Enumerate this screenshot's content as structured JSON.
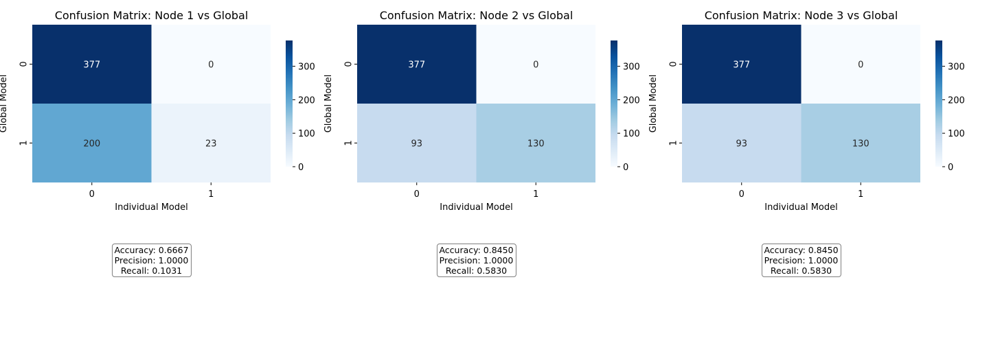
{
  "chart_data": [
    {
      "type": "heatmap",
      "title": "Confusion Matrix: Node 1 vs Global",
      "xlabel": "Individual Model",
      "ylabel": "Global Model",
      "x_categories": [
        "0",
        "1"
      ],
      "y_categories": [
        "0",
        "1"
      ],
      "matrix": [
        [
          377,
          0
        ],
        [
          200,
          23
        ]
      ],
      "colormap": "Blues",
      "colorbar": {
        "ticks": [
          0,
          100,
          200,
          300
        ],
        "range": [
          0,
          377
        ]
      },
      "metrics": [
        "Accuracy: 0.6667",
        "Precision: 1.0000",
        "Recall: 0.1031"
      ]
    },
    {
      "type": "heatmap",
      "title": "Confusion Matrix: Node 2 vs Global",
      "xlabel": "Individual Model",
      "ylabel": "Global Model",
      "x_categories": [
        "0",
        "1"
      ],
      "y_categories": [
        "0",
        "1"
      ],
      "matrix": [
        [
          377,
          0
        ],
        [
          93,
          130
        ]
      ],
      "colormap": "Blues",
      "colorbar": {
        "ticks": [
          0,
          100,
          200,
          300
        ],
        "range": [
          0,
          377
        ]
      },
      "metrics": [
        "Accuracy: 0.8450",
        "Precision: 1.0000",
        "Recall: 0.5830"
      ]
    },
    {
      "type": "heatmap",
      "title": "Confusion Matrix: Node 3 vs Global",
      "xlabel": "Individual Model",
      "ylabel": "Global Model",
      "x_categories": [
        "0",
        "1"
      ],
      "y_categories": [
        "0",
        "1"
      ],
      "matrix": [
        [
          377,
          0
        ],
        [
          93,
          130
        ]
      ],
      "colormap": "Blues",
      "colorbar": {
        "ticks": [
          0,
          100,
          200,
          300
        ],
        "range": [
          0,
          377
        ]
      },
      "metrics": [
        "Accuracy: 0.8450",
        "Precision: 1.0000",
        "Recall: 0.5830"
      ]
    }
  ]
}
